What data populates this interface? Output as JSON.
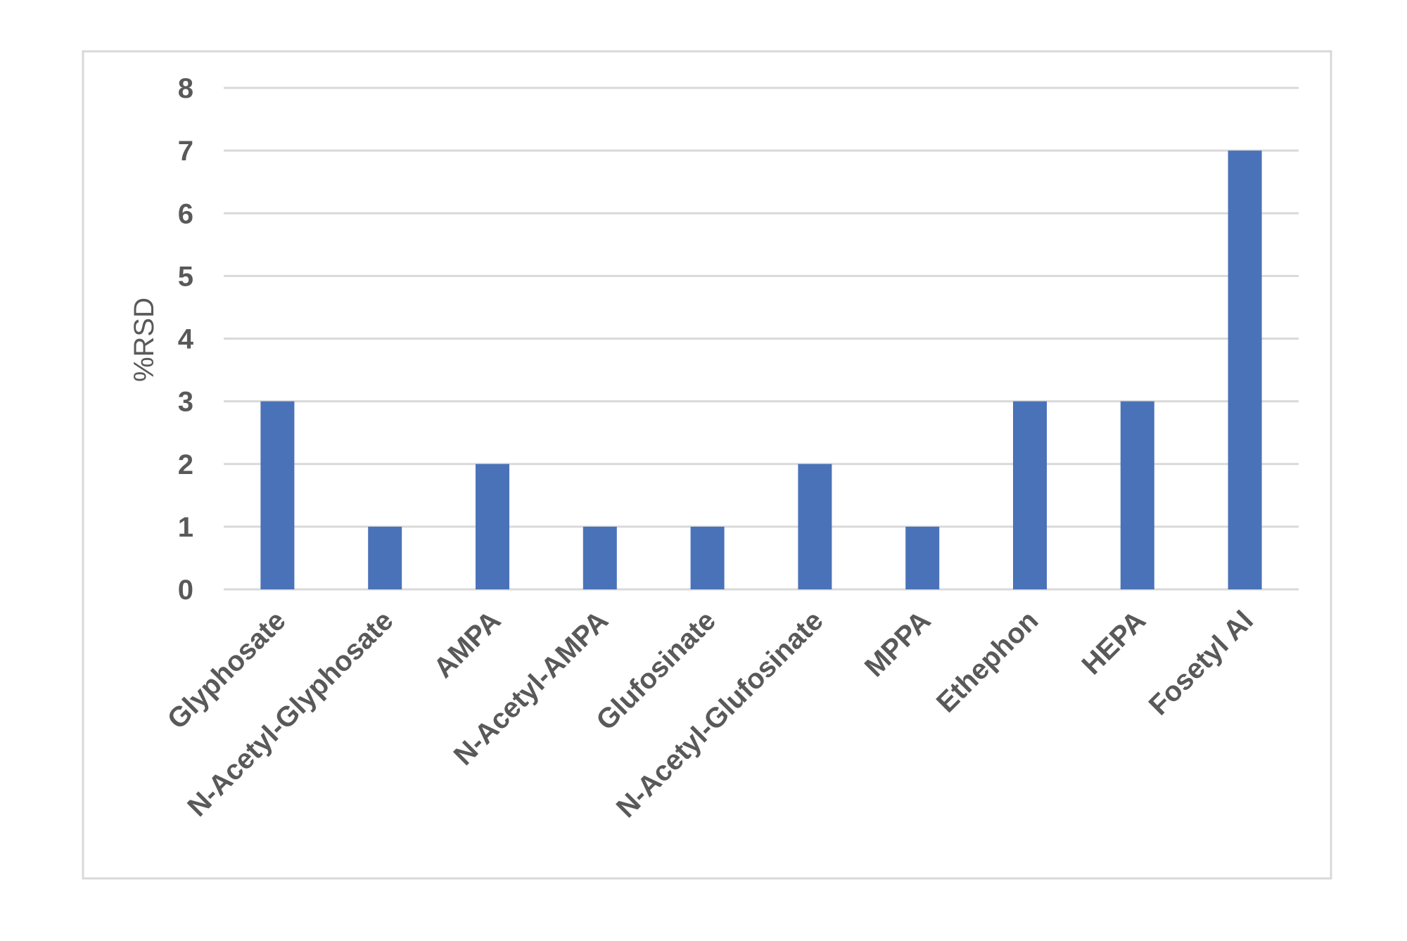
{
  "chart_data": {
    "type": "bar",
    "title": "",
    "xlabel": "",
    "ylabel": "%RSD",
    "ylim": [
      0,
      8
    ],
    "yticks": [
      0,
      1,
      2,
      3,
      4,
      5,
      6,
      7,
      8
    ],
    "grid": true,
    "legend": "none",
    "categories": [
      "Glyphosate",
      "N-Acetyl-Glyphosate",
      "AMPA",
      "N-Acetyl-AMPA",
      "Glufosinate",
      "N-Acetyl-Glufosinate",
      "MPPA",
      "Ethephon",
      "HEPA",
      "Fosetyl Al"
    ],
    "values": [
      3,
      1,
      2,
      1,
      1,
      2,
      1,
      3,
      3,
      7
    ],
    "colors": {
      "bar": "#4A72B8",
      "grid": "#D9D9D9",
      "frame": "#D9D9D9",
      "text": "#595959"
    }
  }
}
